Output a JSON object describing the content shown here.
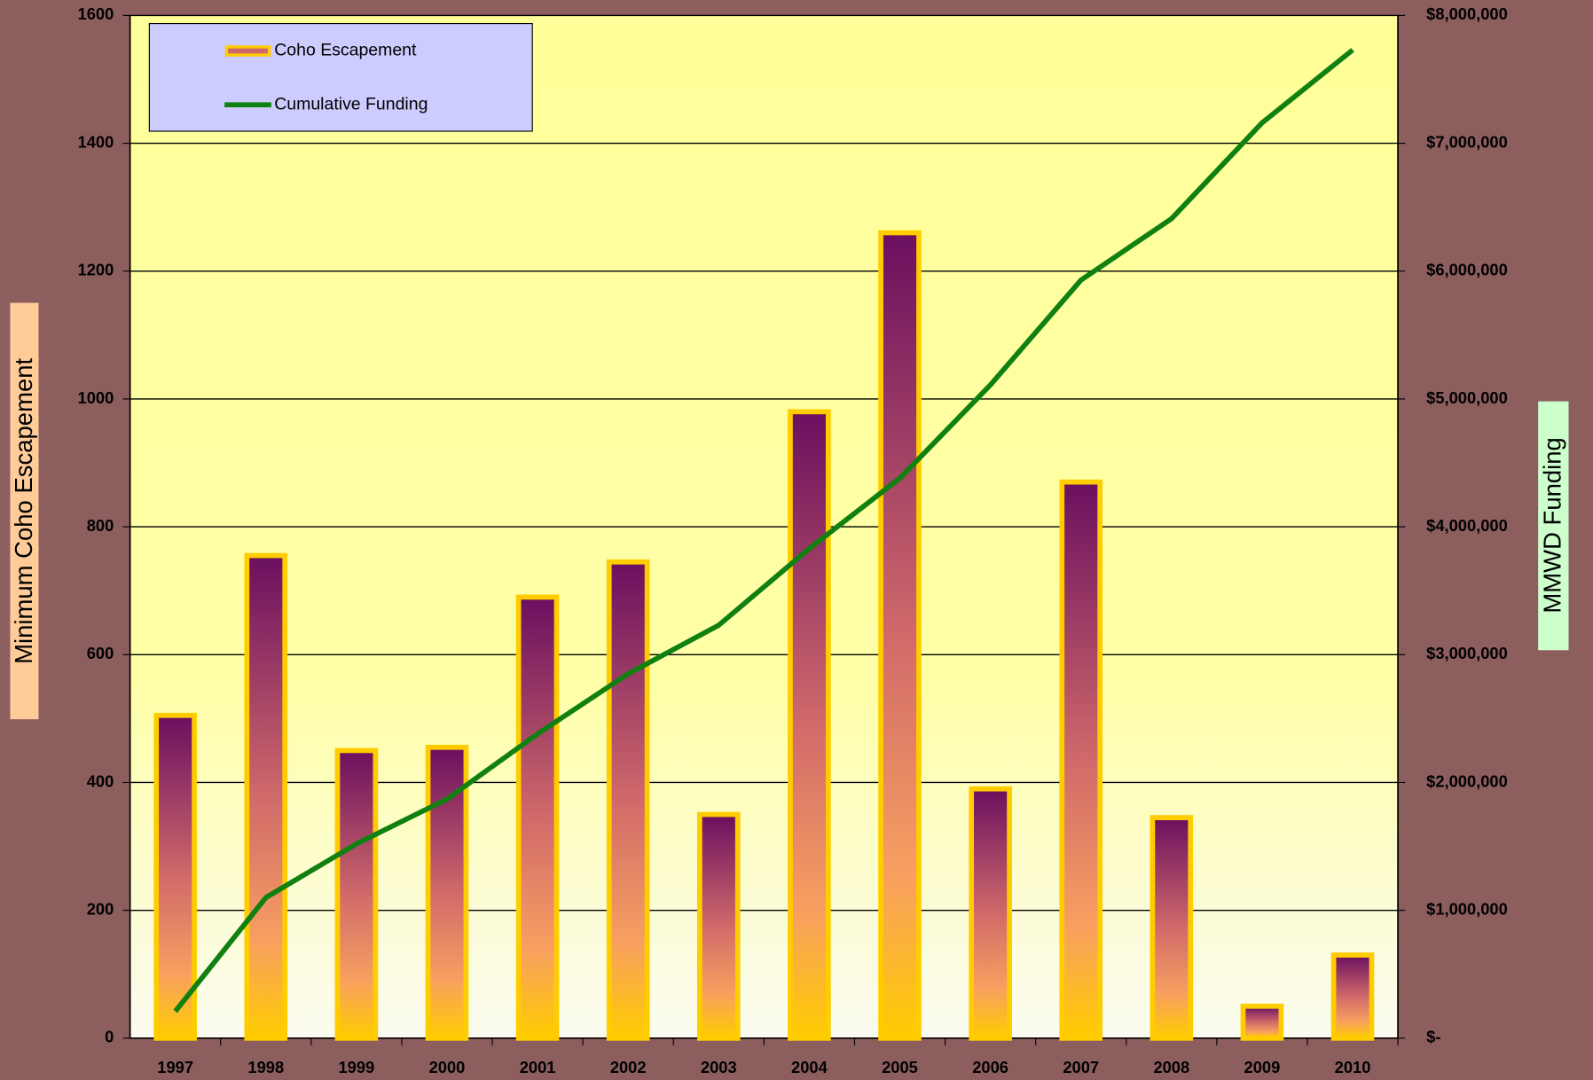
{
  "chart_data": {
    "type": "bar-line",
    "categories": [
      "1997",
      "1998",
      "1999",
      "2000",
      "2001",
      "2002",
      "2003",
      "2004",
      "2005",
      "2006",
      "2007",
      "2008",
      "2009",
      "2010"
    ],
    "series": [
      {
        "name": "Coho Escapement",
        "type": "bar",
        "color": "#ffcc00",
        "values": [
          505,
          755,
          450,
          455,
          690,
          745,
          350,
          980,
          1260,
          390,
          870,
          345,
          50,
          130
        ]
      },
      {
        "name": "Cumulative Funding",
        "type": "line",
        "axis": "y2",
        "color": "#108010",
        "values": [
          210000,
          1100000,
          1520000,
          1870000,
          2380000,
          2850000,
          3230000,
          3830000,
          4380000,
          5110000,
          5930000,
          6410000,
          7160000,
          7730000
        ]
      }
    ],
    "y_label": "Minimum Coho Escapement",
    "y2_label": "MMWD Funding",
    "ylim": [
      0,
      1600
    ],
    "yticks": [
      0,
      200,
      400,
      600,
      800,
      1000,
      1200,
      1400,
      1600
    ],
    "y2lim": [
      0,
      8000000
    ],
    "y2ticks": [
      {
        "value": 0,
        "label": "$-"
      },
      {
        "value": 1000000,
        "label": "$1,000,000"
      },
      {
        "value": 2000000,
        "label": "$2,000,000"
      },
      {
        "value": 3000000,
        "label": "$3,000,000"
      },
      {
        "value": 4000000,
        "label": "$4,000,000"
      },
      {
        "value": 5000000,
        "label": "$5,000,000"
      },
      {
        "value": 6000000,
        "label": "$6,000,000"
      },
      {
        "value": 7000000,
        "label": "$7,000,000"
      },
      {
        "value": 8000000,
        "label": "$8,000,000"
      }
    ],
    "grid": true,
    "legend": "upper left"
  }
}
